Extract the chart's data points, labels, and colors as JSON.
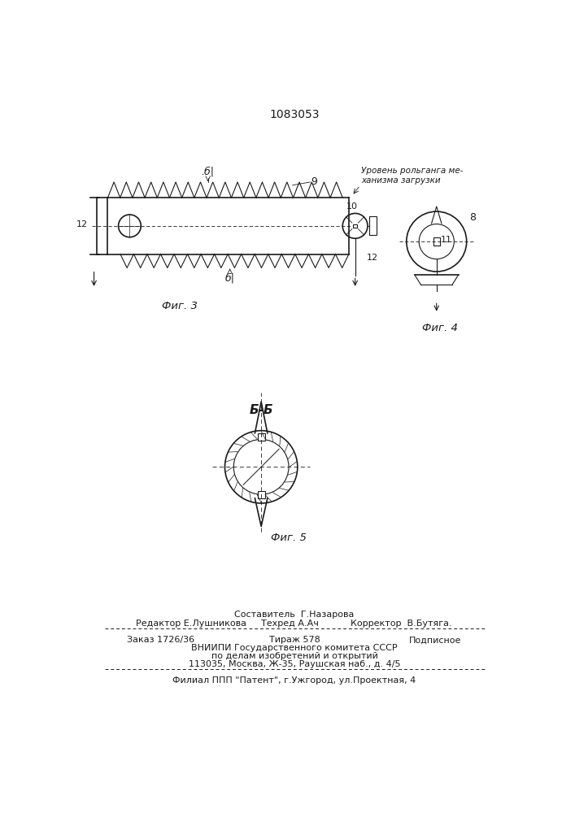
{
  "patent_number": "1083053",
  "background_color": "#ffffff",
  "line_color": "#1a1a1a",
  "fig3_caption": "Фиг. 3",
  "fig4_caption": "Фиг. 4",
  "fig5_caption": "Фиг. 5",
  "fig5_section_label": "Б-Б",
  "annotation_text": "Уровень рольганга ме-\nханизма загрузки",
  "footer_line_compositor": "Составитель  Г.Назарова",
  "footer_line_editor": "Редактор Е.Лушникова",
  "footer_line_tech": "Техред А.Ач",
  "footer_line_corrector": "Корректор  В.Бутяга.",
  "footer_line_order": "Заказ 1726/36",
  "footer_line_tirazh": "Тираж 578",
  "footer_line_podp": "Подписное",
  "footer_line4": "ВНИИПИ Государственного комитета СССР",
  "footer_line5": "по делам изобретений и открытий",
  "footer_line6": "113035, Москва, Ж-35, Раушская наб., д. 4/5",
  "footer_line7": "Филиал ППП \"Патент\", г.Ужгород, ул.Проектная, 4"
}
